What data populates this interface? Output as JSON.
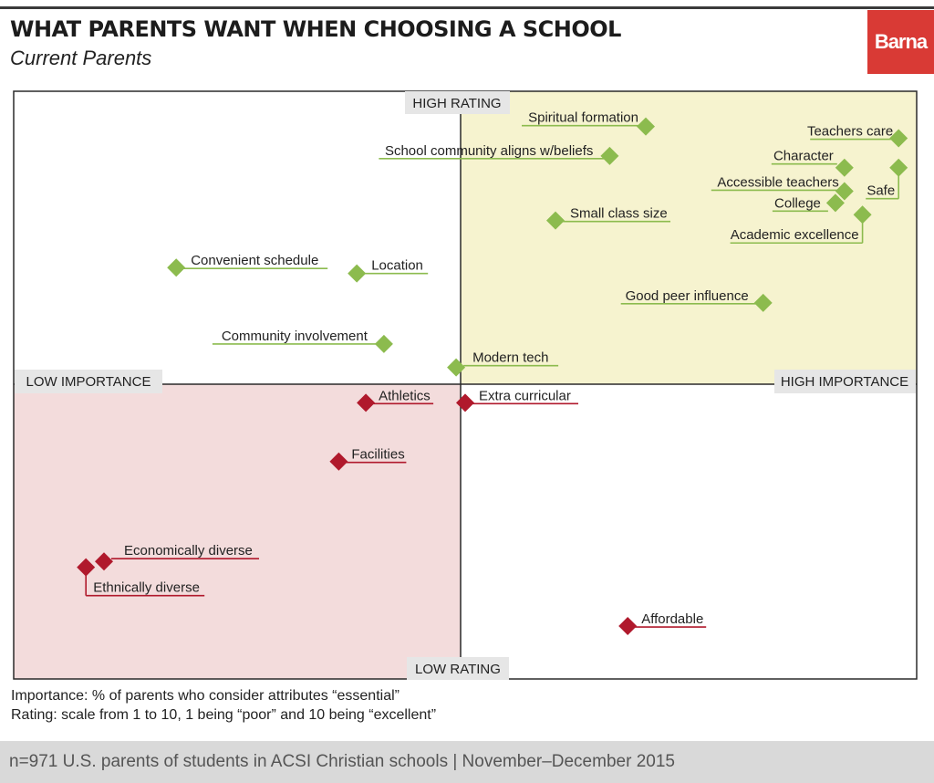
{
  "header": {
    "title": "WHAT PARENTS WANT WHEN CHOOSING A SCHOOL",
    "subtitle": "Current Parents",
    "logo_text": "Barna"
  },
  "colors": {
    "high_quadrant_fill": "#f6f3cf",
    "low_quadrant_fill": "#f3dcdc",
    "green_marker": "#8cbb4e",
    "red_marker": "#b0192c",
    "axis_tag_fill": "#e6e6e6",
    "logo": "#d93a35"
  },
  "chart_data": {
    "type": "scatter",
    "chart_style": "quadrant",
    "axis_labels": {
      "top": "HIGH RATING",
      "bottom": "LOW RATING",
      "left": "LOW IMPORTANCE",
      "right": "HIGH IMPORTANCE"
    },
    "x_measure": "importance",
    "y_measure": "rating",
    "points": [
      {
        "label": "Spiritual formation",
        "importance": 0.7,
        "rating": 0.94,
        "group": "high"
      },
      {
        "label": "Teachers care",
        "importance": 0.98,
        "rating": 0.92,
        "group": "high"
      },
      {
        "label": "School community aligns w/beliefs",
        "importance": 0.66,
        "rating": 0.89,
        "group": "high"
      },
      {
        "label": "Character",
        "importance": 0.92,
        "rating": 0.87,
        "group": "high"
      },
      {
        "label": "Safe",
        "importance": 0.98,
        "rating": 0.87,
        "group": "high"
      },
      {
        "label": "Accessible teachers",
        "importance": 0.92,
        "rating": 0.83,
        "group": "high"
      },
      {
        "label": "College",
        "importance": 0.91,
        "rating": 0.81,
        "group": "high"
      },
      {
        "label": "Academic excellence",
        "importance": 0.94,
        "rating": 0.79,
        "group": "high"
      },
      {
        "label": "Small class size",
        "importance": 0.6,
        "rating": 0.78,
        "group": "high"
      },
      {
        "label": "Convenient schedule",
        "importance": 0.18,
        "rating": 0.7,
        "group": "high"
      },
      {
        "label": "Location",
        "importance": 0.38,
        "rating": 0.69,
        "group": "high"
      },
      {
        "label": "Good peer influence",
        "importance": 0.83,
        "rating": 0.64,
        "group": "high"
      },
      {
        "label": "Community involvement",
        "importance": 0.41,
        "rating": 0.57,
        "group": "high"
      },
      {
        "label": "Modern tech",
        "importance": 0.49,
        "rating": 0.53,
        "group": "high"
      },
      {
        "label": "Athletics",
        "importance": 0.39,
        "rating": 0.47,
        "group": "low"
      },
      {
        "label": "Extra curricular",
        "importance": 0.5,
        "rating": 0.47,
        "group": "low"
      },
      {
        "label": "Facilities",
        "importance": 0.36,
        "rating": 0.37,
        "group": "low"
      },
      {
        "label": "Economically diverse",
        "importance": 0.1,
        "rating": 0.2,
        "group": "low"
      },
      {
        "label": "Ethnically diverse",
        "importance": 0.08,
        "rating": 0.19,
        "group": "low"
      },
      {
        "label": "Affordable",
        "importance": 0.68,
        "rating": 0.09,
        "group": "low"
      }
    ]
  },
  "notes": {
    "importance": "Importance: % of parents who consider attributes “essential”",
    "rating": "Rating: scale from 1 to 10, 1 being “poor” and 10 being “excellent”"
  },
  "footer": {
    "source": "n=971 U.S. parents of students in ACSI Christian schools | November–December 2015"
  }
}
